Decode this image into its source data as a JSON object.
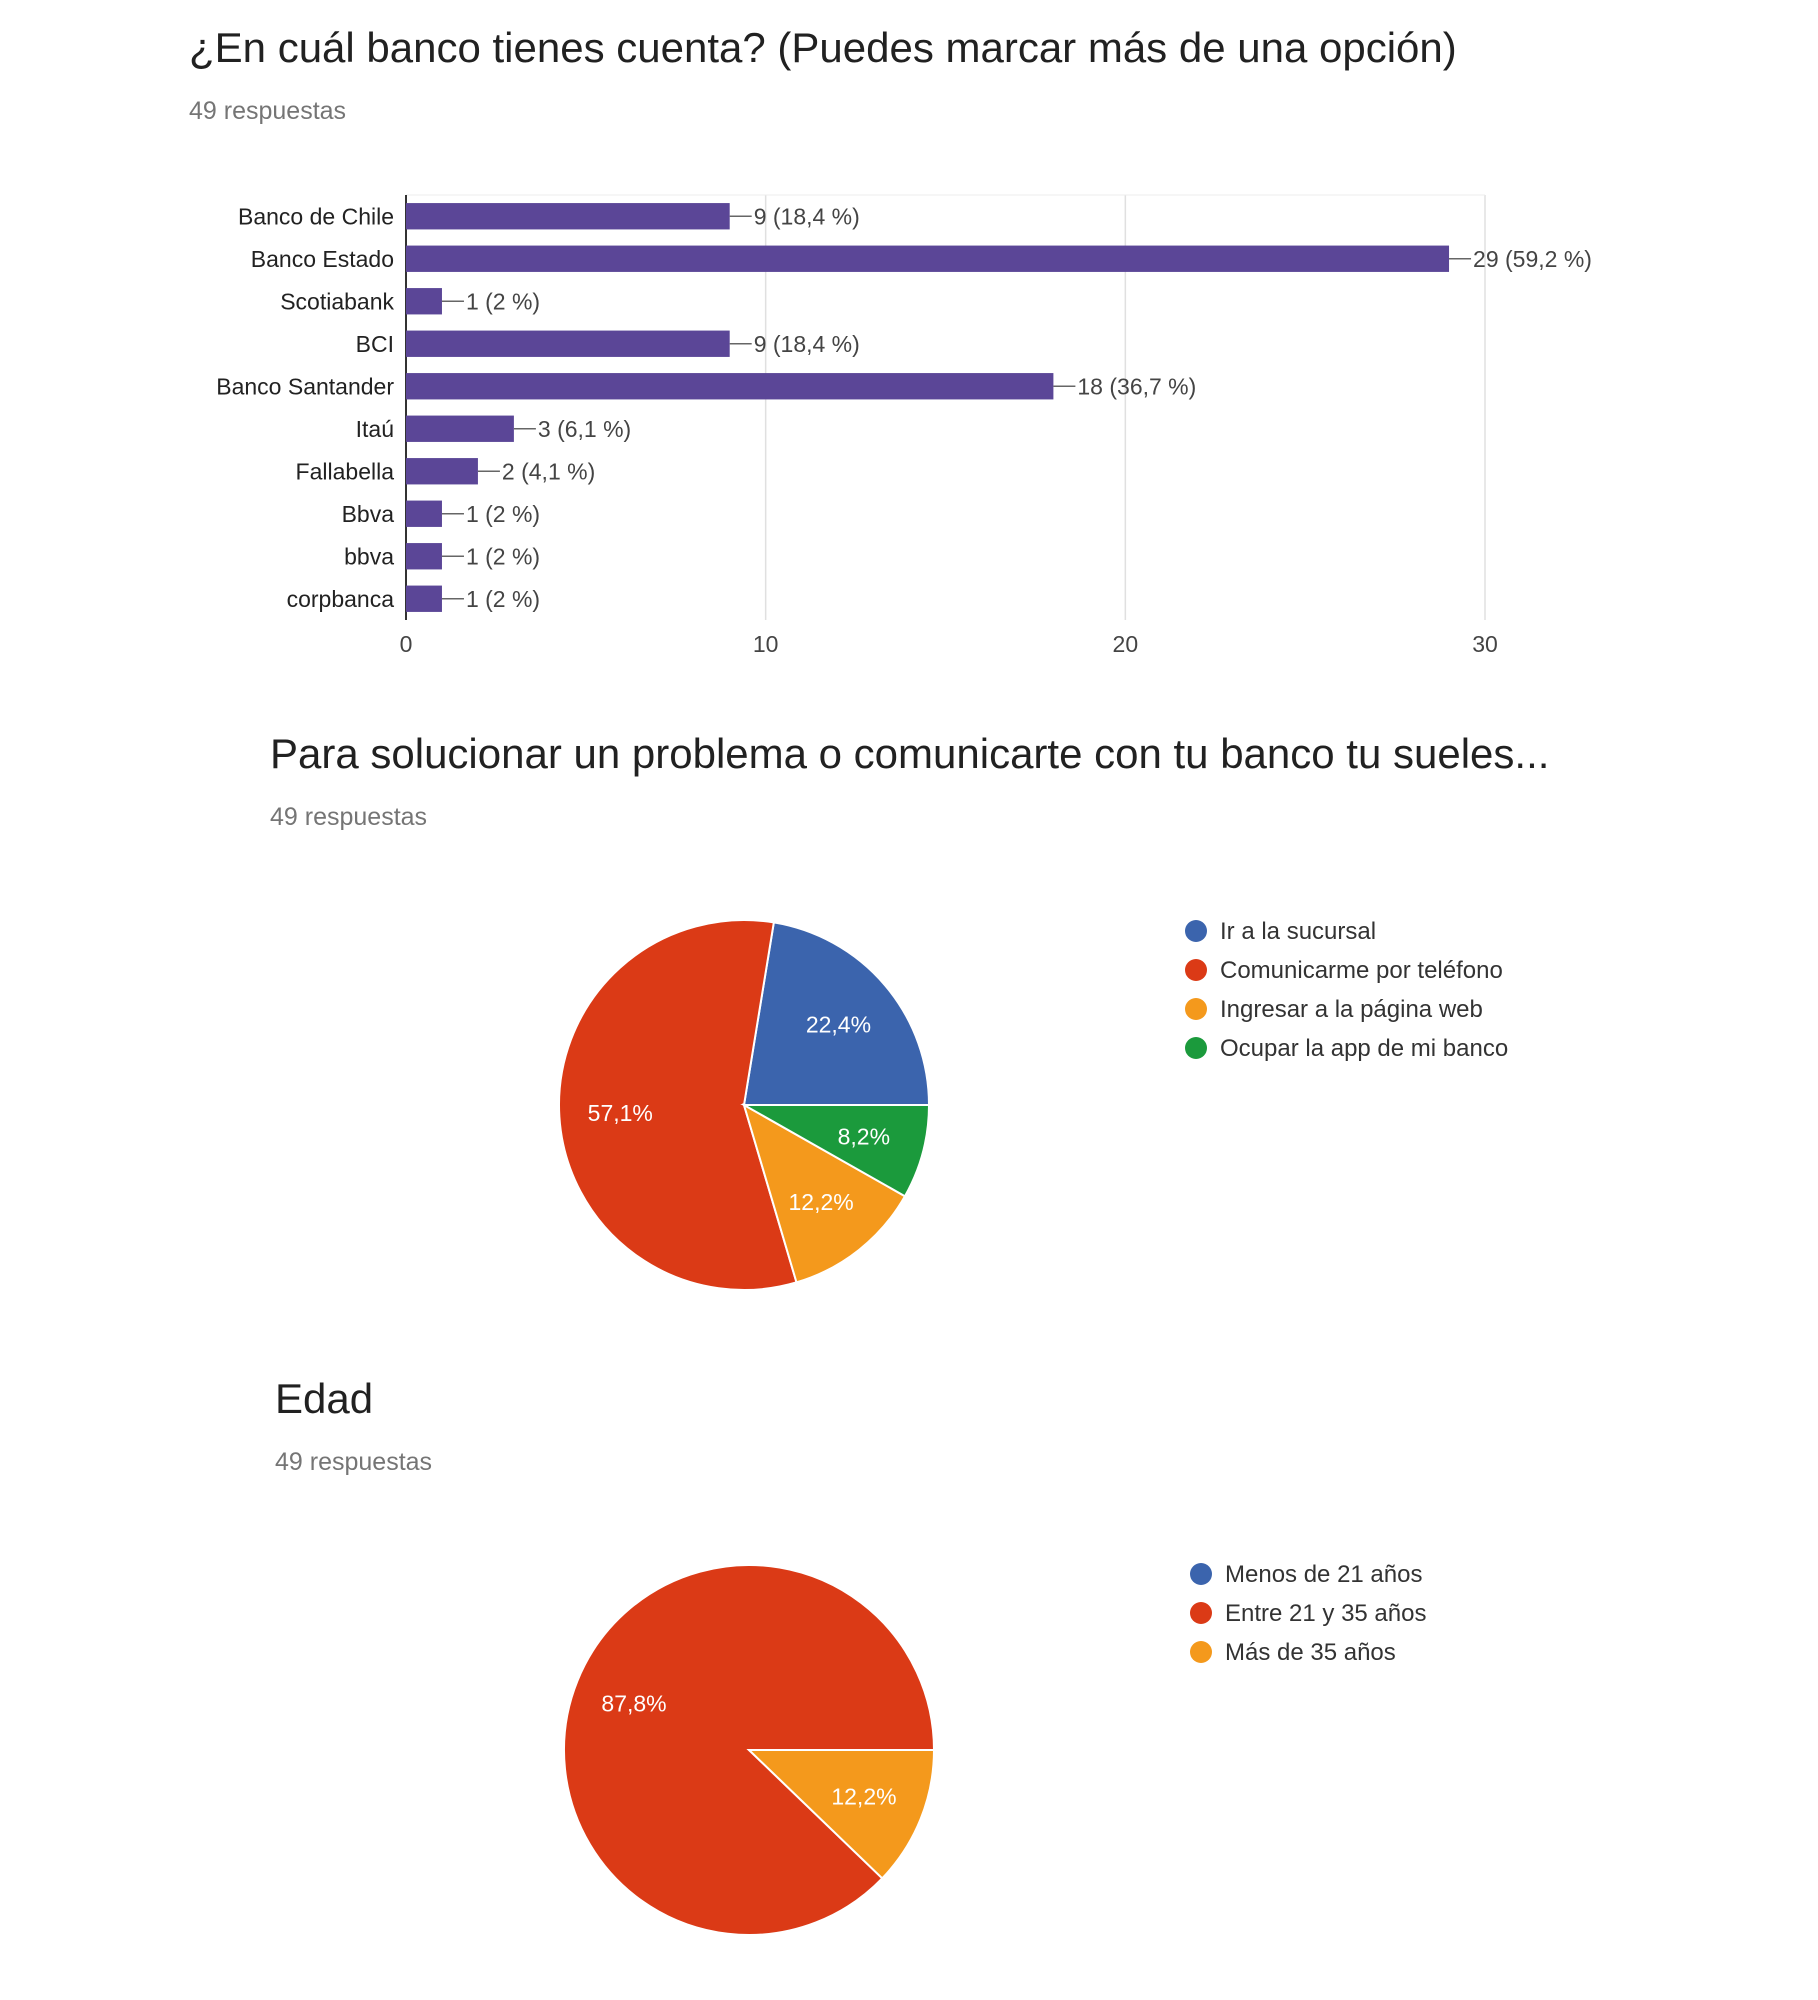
{
  "charts": [
    {
      "question": "¿En cuál banco tienes cuenta? (Puedes marcar más de una opción)",
      "responses": "49 respuestas"
    },
    {
      "question": "Para solucionar un problema o comunicarte con tu banco tu sueles...",
      "responses": "49 respuestas"
    },
    {
      "question": "Edad",
      "responses": "49 respuestas"
    }
  ],
  "chart_data": [
    {
      "type": "bar",
      "orientation": "horizontal",
      "categories": [
        "Banco de Chile",
        "Banco Estado",
        "Scotiabank",
        "BCI",
        "Banco Santander",
        "Itaú",
        "Fallabella",
        "Bbva",
        "bbva",
        "corpbanca"
      ],
      "values": [
        9,
        29,
        1,
        9,
        18,
        3,
        2,
        1,
        1,
        1
      ],
      "data_labels": [
        "9 (18,4 %)",
        "29 (59,2 %)",
        "1 (2 %)",
        "9 (18,4 %)",
        "18 (36,7 %)",
        "3 (6,1 %)",
        "2 (4,1 %)",
        "1 (2 %)",
        "1 (2 %)",
        "1 (2 %)"
      ],
      "xticks": [
        "0",
        "10",
        "20",
        "30"
      ],
      "xlim": [
        0,
        30
      ],
      "grid": true,
      "color": "#5b4697"
    },
    {
      "type": "pie",
      "labels": [
        "Ir a la sucursal",
        "Comunicarme por teléfono",
        "Ingresar a la página web",
        "Ocupar la app de mi banco"
      ],
      "values": [
        22.4,
        57.1,
        12.2,
        8.2
      ],
      "slice_labels": [
        "22,4%",
        "57,1%",
        "12,2%",
        "8,2%"
      ],
      "colors": [
        "#3b64ad",
        "#db3a16",
        "#f4991c",
        "#1b9a3c"
      ],
      "legend": "right"
    },
    {
      "type": "pie",
      "labels": [
        "Menos de 21 años",
        "Entre 21 y 35 años",
        "Más de 35 años"
      ],
      "values": [
        0,
        87.8,
        12.2
      ],
      "slice_labels": [
        "",
        "87,8%",
        "12,2%"
      ],
      "colors": [
        "#3b64ad",
        "#db3a16",
        "#f4991c"
      ],
      "legend": "right"
    }
  ]
}
